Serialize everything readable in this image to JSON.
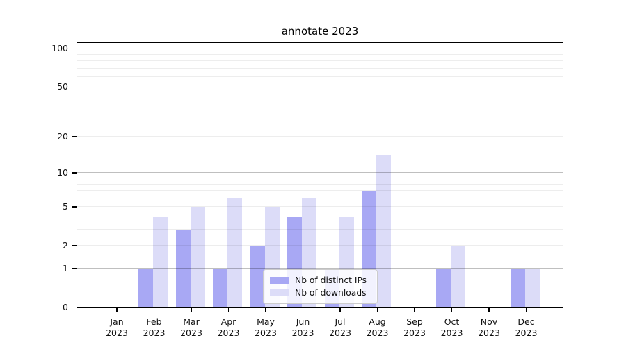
{
  "chart_data": {
    "type": "bar",
    "title": "annotate 2023",
    "categories": [
      {
        "month": "Jan",
        "year": "2023"
      },
      {
        "month": "Feb",
        "year": "2023"
      },
      {
        "month": "Mar",
        "year": "2023"
      },
      {
        "month": "Apr",
        "year": "2023"
      },
      {
        "month": "May",
        "year": "2023"
      },
      {
        "month": "Jun",
        "year": "2023"
      },
      {
        "month": "Jul",
        "year": "2023"
      },
      {
        "month": "Aug",
        "year": "2023"
      },
      {
        "month": "Sep",
        "year": "2023"
      },
      {
        "month": "Oct",
        "year": "2023"
      },
      {
        "month": "Nov",
        "year": "2023"
      },
      {
        "month": "Dec",
        "year": "2023"
      }
    ],
    "series": [
      {
        "name": "Nb of distinct IPs",
        "color": "#a8a8f4",
        "values": [
          0,
          1,
          3,
          1,
          2,
          4,
          1,
          7,
          0,
          1,
          0,
          1
        ]
      },
      {
        "name": "Nb of downloads",
        "color": "#dcdcf8",
        "values": [
          0,
          4,
          5,
          6,
          5,
          6,
          4,
          14,
          0,
          2,
          0,
          1
        ]
      }
    ],
    "yscale": "log1p",
    "ylim": [
      0,
      112
    ],
    "yticks": [
      100,
      50,
      20,
      10,
      5,
      2,
      1,
      0
    ],
    "yticks_minor": [
      3,
      4,
      6,
      7,
      8,
      9,
      30,
      40,
      60,
      70,
      80,
      90
    ],
    "emphasized_gridlines": [
      1,
      10,
      100
    ],
    "legend_position": "lower center",
    "grid": "on",
    "colors": {
      "grid_emphasis": "rgba(0,0,0,0.25)",
      "grid_regular": "rgba(0,0,0,0.07)",
      "spine": "#000000",
      "text": "#111111"
    }
  }
}
